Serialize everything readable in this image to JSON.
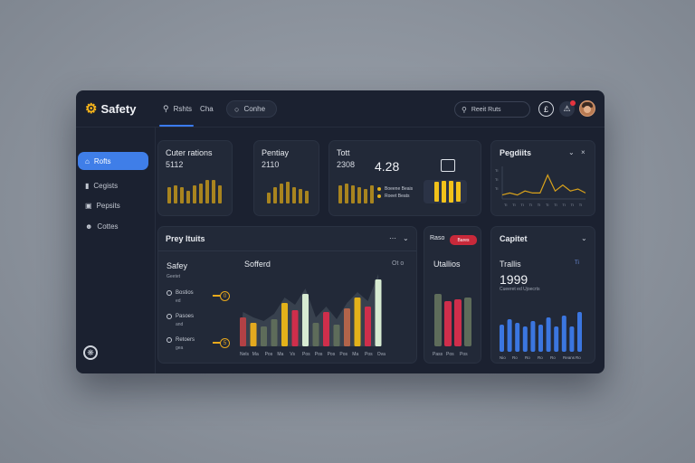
{
  "app": {
    "name": "Safety"
  },
  "topbar": {
    "tab1_label": "Rshts",
    "tab1_suffix": "Cha",
    "tab2_label": "Conhe",
    "search_placeholder": "Reeit Ruts"
  },
  "sidebar": {
    "items": [
      {
        "label": "Rofts",
        "active": true
      },
      {
        "label": "Cegists"
      },
      {
        "label": "Pepsits"
      },
      {
        "label": "Cottes"
      }
    ]
  },
  "cards": {
    "orders": {
      "title": "Cuter rations",
      "value": "5112",
      "bars": [
        18,
        20,
        18,
        14,
        20,
        22,
        26,
        26,
        20
      ]
    },
    "pending": {
      "title": "Pentiay",
      "value": "2110",
      "bars": [
        12,
        18,
        22,
        24,
        18,
        16,
        14
      ]
    },
    "total": {
      "title": "Tott",
      "value": "2308",
      "big_value": "4.28",
      "legend": [
        "Boeene Beais",
        "Roeet Beats"
      ],
      "bars_small": [
        20,
        22,
        20,
        18,
        16,
        20
      ],
      "bars_bright": [
        22,
        24,
        24,
        22
      ]
    },
    "profiles": {
      "title": "Pegdiits",
      "axis_labels": [
        "Tl",
        "Tl",
        "Tl",
        "Tl",
        "Tl",
        "Tl",
        "Tl",
        "Tl",
        "Tl",
        "Tl"
      ],
      "line_points": [
        2,
        3,
        2,
        4,
        3,
        3,
        12,
        4,
        7,
        4,
        5,
        3
      ]
    },
    "progress": {
      "title": "Prey ltuits",
      "controls": "⋯",
      "subtitle": "Safey",
      "sub_small": "Geetet",
      "chart_title": "Sofferd",
      "chart_meta": "Ot o",
      "list": [
        {
          "label": "Bostios",
          "sub": "ed"
        },
        {
          "label": "Pasoes",
          "sub": "and"
        },
        {
          "label": "Retoers",
          "sub": "gea"
        }
      ],
      "markers": [
        "0",
        "5"
      ],
      "bars": [
        {
          "v": 32,
          "c": "#b24145"
        },
        {
          "v": 26,
          "c": "#e3a91f"
        },
        {
          "v": 22,
          "c": "#5e6c5a"
        },
        {
          "v": 30,
          "c": "#5e6c5a"
        },
        {
          "v": 48,
          "c": "#e3b21a"
        },
        {
          "v": 40,
          "c": "#cf2e4b"
        },
        {
          "v": 58,
          "c": "#d7ebd2"
        },
        {
          "v": 26,
          "c": "#5e6c5a"
        },
        {
          "v": 38,
          "c": "#cf2e4b"
        },
        {
          "v": 24,
          "c": "#5e6c5a"
        },
        {
          "v": 42,
          "c": "#b2644a"
        },
        {
          "v": 54,
          "c": "#e3b21a"
        },
        {
          "v": 44,
          "c": "#cf2e4b"
        },
        {
          "v": 74,
          "c": "#d7ebd2"
        }
      ],
      "xlabels": [
        "Nels",
        "Ma",
        "Pos",
        "Ma",
        "Vs",
        "Pos",
        "Pos",
        "Pos",
        "Pos",
        "Ma",
        "Pos",
        "Ova"
      ]
    },
    "rates": {
      "title": "Raso",
      "badge": "Bares",
      "subtitle": "Utallios",
      "bars": [
        {
          "v": 58,
          "c": "#5e6c5a"
        },
        {
          "v": 50,
          "c": "#cf2e4b"
        },
        {
          "v": 52,
          "c": "#cf2e4b"
        },
        {
          "v": 54,
          "c": "#5e6c5a"
        }
      ],
      "xlabels": [
        "Pass",
        "Pos",
        "Pos"
      ]
    },
    "capital": {
      "title": "Capitet",
      "subtitle": "Trallis",
      "big_value": "1999",
      "meta": "Ti",
      "small_text": "Cueeret ed Ujoecrts",
      "bars": [
        30,
        36,
        32,
        28,
        34,
        30,
        38,
        28,
        40,
        28,
        44
      ],
      "xlabels": [
        "Nio",
        "Ro",
        "Ro",
        "Ro",
        "Ro",
        "Reans",
        "Ro"
      ]
    }
  },
  "colors": {
    "accent": "#3f7ee8",
    "gold": "#e3b21a",
    "red": "#cf2e4b",
    "panel": "#222938",
    "bg": "#1b2130"
  }
}
